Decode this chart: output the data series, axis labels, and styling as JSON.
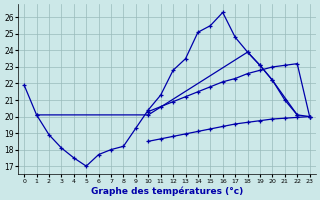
{
  "bg_color": "#cce8e8",
  "grid_color": "#99bbbb",
  "line_color": "#0000aa",
  "xlabel": "Graphe des températures (°c)",
  "ylim": [
    16.5,
    26.8
  ],
  "xlim": [
    -0.5,
    23.5
  ],
  "yticks": [
    17,
    18,
    19,
    20,
    21,
    22,
    23,
    24,
    25,
    26
  ],
  "xticks": [
    0,
    1,
    2,
    3,
    4,
    5,
    6,
    7,
    8,
    9,
    10,
    11,
    12,
    13,
    14,
    15,
    16,
    17,
    18,
    19,
    20,
    21,
    22,
    23
  ],
  "series": [
    {
      "x": [
        0,
        1,
        2,
        3,
        4,
        5,
        6,
        7,
        8,
        9,
        10,
        11,
        12,
        13,
        14,
        15,
        16,
        17,
        18,
        19,
        20,
        21,
        22
      ],
      "y": [
        21.9,
        20.1,
        18.9,
        18.1,
        17.5,
        17.0,
        17.7,
        18.0,
        18.2,
        19.3,
        20.4,
        21.3,
        22.8,
        23.5,
        25.1,
        25.5,
        26.3,
        24.8,
        23.9,
        23.1,
        22.2,
        21.0,
        20.1
      ]
    },
    {
      "x": [
        1,
        10,
        18,
        19,
        20,
        22,
        23
      ],
      "y": [
        20.1,
        20.1,
        23.9,
        23.1,
        22.2,
        20.1,
        20.0
      ]
    },
    {
      "x": [
        10,
        11,
        12,
        13,
        14,
        15,
        16,
        17,
        18,
        19,
        20,
        21,
        22,
        23
      ],
      "y": [
        20.3,
        20.6,
        20.9,
        21.2,
        21.5,
        21.8,
        22.1,
        22.3,
        22.6,
        22.8,
        23.0,
        23.1,
        23.2,
        20.0
      ]
    },
    {
      "x": [
        10,
        11,
        12,
        13,
        14,
        15,
        16,
        17,
        18,
        19,
        20,
        21,
        22,
        23
      ],
      "y": [
        18.5,
        18.65,
        18.8,
        18.95,
        19.1,
        19.25,
        19.4,
        19.55,
        19.65,
        19.75,
        19.85,
        19.9,
        19.95,
        20.0
      ]
    }
  ]
}
